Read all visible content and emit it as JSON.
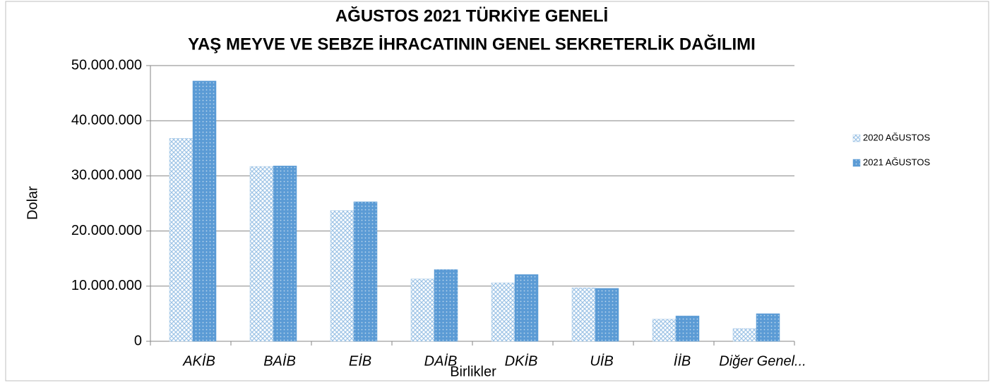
{
  "chart_data": {
    "type": "bar",
    "title_lines": [
      "AĞUSTOS 2021 TÜRKİYE GENELİ",
      "YAŞ MEYVE VE SEBZE İHRACATININ GENEL SEKRETERLİK DAĞILIMI"
    ],
    "x_label": "Birlikler",
    "y_label": "Dolar",
    "categories": [
      "AKİB",
      "BAİB",
      "EİB",
      "DAİB",
      "DKİB",
      "UİB",
      "İİB",
      "Diğer Genel..."
    ],
    "series": [
      {
        "name": "2020 AĞUSTOS",
        "color": "#9dc3e6",
        "values": [
          36800000,
          31700000,
          23700000,
          11300000,
          10600000,
          9700000,
          4000000,
          2300000
        ]
      },
      {
        "name": "2021 AĞUSTOS",
        "color": "#5b9bd5",
        "values": [
          47200000,
          31800000,
          25300000,
          13000000,
          12100000,
          9600000,
          4600000,
          5000000
        ]
      }
    ],
    "ylim": [
      0,
      50000000
    ],
    "yticks": [
      0,
      {
        "value": 10000000,
        "label": "10.000.000"
      },
      {
        "value": 20000000,
        "label": "20.000.000"
      },
      {
        "value": 30000000,
        "label": "30.000.000"
      },
      {
        "value": 40000000,
        "label": "40.000.000"
      },
      {
        "value": 50000000,
        "label": "50.000.000"
      }
    ],
    "grid": true,
    "legend": "right"
  }
}
